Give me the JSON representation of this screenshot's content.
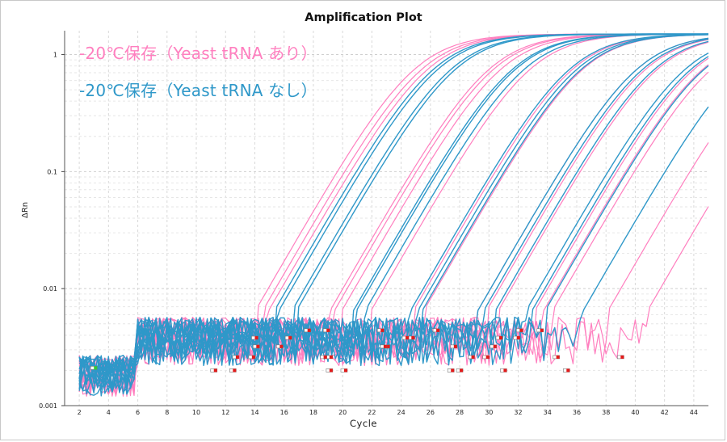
{
  "chart_data": {
    "type": "line",
    "title": "Amplification Plot",
    "xlabel": "Cycle",
    "ylabel": "ΔRn",
    "xlim": [
      1,
      45
    ],
    "ylim": [
      0.001,
      1.6
    ],
    "yscale": "log",
    "grid": true,
    "x_ticks": [
      "2",
      "4",
      "6",
      "8",
      "10",
      "12",
      "14",
      "16",
      "18",
      "20",
      "22",
      "24",
      "26",
      "28",
      "30",
      "32",
      "34",
      "36",
      "38",
      "40",
      "42",
      "44"
    ],
    "y_ticks": [
      "1",
      "0.1",
      "0.01",
      "0.001"
    ],
    "legend_position": "top-left",
    "series": [
      {
        "name": "-20℃保存（Yeast tRNA あり）",
        "color": "#ff7fbf",
        "ct_values": [
          14.7,
          15.2,
          15.6,
          19.8,
          20.1,
          20.6,
          22.6,
          25.5,
          26.2,
          29.9,
          30.5,
          31.3,
          33.8,
          34.4,
          35.0,
          38.8,
          41.5
        ]
      },
      {
        "name": "-20℃保存（Yeast tRNA なし）",
        "color": "#2f98c9",
        "ct_values": [
          16.0,
          16.3,
          17.2,
          17.5,
          21.4,
          21.6,
          22.2,
          25.3,
          25.8,
          26.1,
          29.9,
          30.3,
          31.1,
          33.2,
          33.6,
          34.5,
          37.1
        ]
      }
    ],
    "plateau_value": 1.5
  }
}
